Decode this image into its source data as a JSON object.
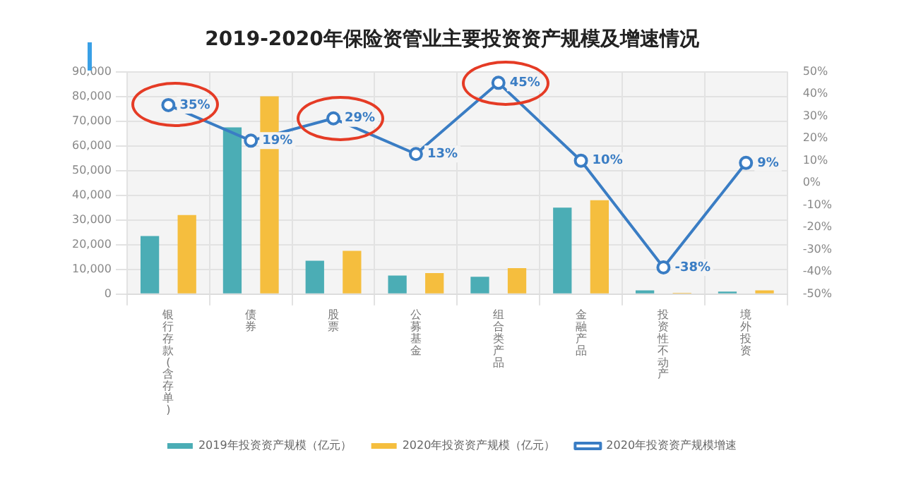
{
  "chart_data": {
    "type": "bar",
    "title": "2019-2020年保险资管业主要投资资产规模及增速情况",
    "categories": [
      "银行存款(含存单)",
      "债券",
      "股票",
      "公募基金",
      "组合类产品",
      "金融产品",
      "投资性不动产",
      "境外投资"
    ],
    "series": [
      {
        "name": "2019年投资资产规模（亿元）",
        "color": "#4badb5",
        "values": [
          23500,
          67500,
          13500,
          7500,
          7000,
          35000,
          1500,
          1000
        ]
      },
      {
        "name": "2020年投资资产规模（亿元）",
        "color": "#f5be3e",
        "values": [
          32000,
          80000,
          17500,
          8500,
          10500,
          38000,
          500,
          1500
        ]
      },
      {
        "name": "2020年投资资产规模增速",
        "type": "line",
        "axis": "y2",
        "color": "#3a7dc4",
        "values": [
          35,
          19,
          29,
          13,
          45,
          10,
          -38,
          9
        ],
        "value_labels": [
          "35%",
          "19%",
          "29%",
          "13%",
          "45%",
          "10%",
          "-38%",
          "9%"
        ]
      }
    ],
    "ylim": [
      0,
      90000
    ],
    "yticks": [
      0,
      {
        "value": 10000,
        "label": "10,000"
      },
      {
        "value": 20000,
        "label": "20,000"
      },
      {
        "value": 30000,
        "label": "30,000"
      },
      {
        "value": 40000,
        "label": "40,000"
      },
      {
        "value": 50000,
        "label": "50,000"
      },
      {
        "value": 60000,
        "label": "60,000"
      },
      {
        "value": 70000,
        "label": "70,000"
      },
      {
        "value": 80000,
        "label": "80,000"
      },
      {
        "value": 90000,
        "label": "90,000"
      }
    ],
    "y2lim": [
      -50,
      50
    ],
    "y2ticks": [
      {
        "value": -50,
        "label": "-50%"
      },
      {
        "value": -40,
        "label": "-40%"
      },
      {
        "value": -30,
        "label": "-30%"
      },
      {
        "value": -20,
        "label": "-20%"
      },
      {
        "value": -10,
        "label": "-10%"
      },
      {
        "value": 0,
        "label": "0%"
      },
      {
        "value": 10,
        "label": "10%"
      },
      {
        "value": 20,
        "label": "20%"
      },
      {
        "value": 30,
        "label": "30%"
      },
      {
        "value": 40,
        "label": "40%"
      },
      {
        "value": 50,
        "label": "50%"
      }
    ],
    "grid": true,
    "legend": "bottom",
    "marker": "circle",
    "line_style": "solid"
  }
}
